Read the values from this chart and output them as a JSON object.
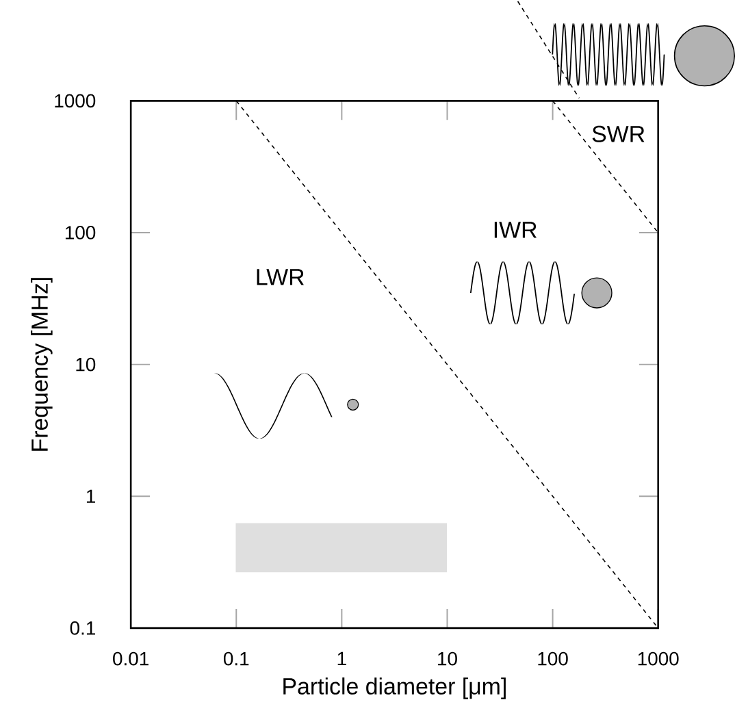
{
  "chart_data": {
    "type": "line",
    "xlabel": "Particle diameter [μm]",
    "ylabel": "Frequency  [MHz]",
    "log": "xy",
    "xlim": [
      0.01,
      1000
    ],
    "ylim": [
      0.1,
      1000
    ],
    "xticks": [
      0.01,
      0.1,
      1,
      10,
      100,
      1000
    ],
    "yticks": [
      0.1,
      1,
      10,
      100,
      1000
    ],
    "marker": "none",
    "line_style": "dashed",
    "series": [
      {
        "color": "#000000",
        "x": [
          0.1,
          1000
        ],
        "values": [
          1000,
          0.1
        ]
      },
      {
        "color": "#000000",
        "x": [
          100,
          1000
        ],
        "values": [
          1000,
          100
        ]
      }
    ],
    "annotations": [
      "LWR",
      "IWR",
      "SWR"
    ]
  }
}
